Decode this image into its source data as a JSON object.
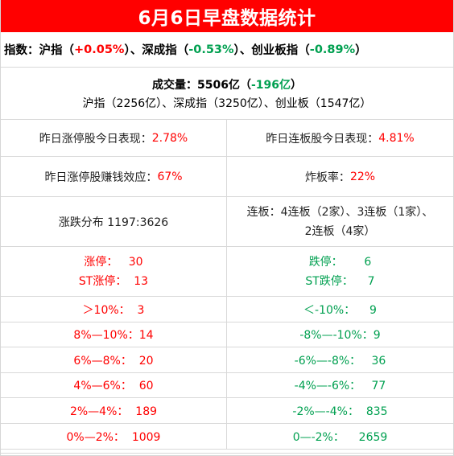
{
  "title": "6月6日早盘数据统计",
  "index": {
    "label": "指数：",
    "sh_name": "沪指（",
    "sh_value": "+0.05%",
    "sh_close": "）、",
    "sz_name": "深成指（",
    "sz_value": "-0.53%",
    "sz_close": "）、",
    "cy_name": "创业板指（",
    "cy_value": "-0.89%",
    "cy_close": "）"
  },
  "volume": {
    "label": "成交量：5506亿（",
    "change": "-196亿",
    "close": "）",
    "breakdown": "沪指（2256亿）、深成指（3250亿）、创业板（1547亿）"
  },
  "stats": {
    "row1_left_label": "昨日涨停股今日表现：",
    "row1_left_value": "2.78%",
    "row1_right_label": "昨日连板股今日表现：",
    "row1_right_value": "4.81%",
    "row2_left_label": "昨日涨停股赚钱效应：",
    "row2_left_value": "67%",
    "row2_right_label": "炸板率：",
    "row2_right_value": "22%",
    "row3_left": "涨跌分布 1197:3626",
    "row3_right_line1": "连板：4连板（2家）、3连板（1家）、",
    "row3_right_line2": "2连板（4家）"
  },
  "limits": {
    "up_1": "涨停：   30",
    "up_2": "ST涨停：  13",
    "down_1": "跌停：      6",
    "down_2": "ST跌停：    7"
  },
  "distribution": {
    "up": [
      "＞10%：  3",
      "8%—10%：14",
      "6%—8%：  20",
      "4%—6%：  60",
      "2%—4%：  189",
      "0%—2%：  1009"
    ],
    "down": [
      "＜-10%：    9",
      "-8%—-10%：9",
      "-6%—-8%：   36",
      "-4%—-6%：   77",
      "-2%—-4%：  835",
      "0—-2%：    2659"
    ]
  },
  "colors": {
    "up": "#ff0000",
    "down": "#00a050",
    "header_bg": "#ff0000"
  }
}
